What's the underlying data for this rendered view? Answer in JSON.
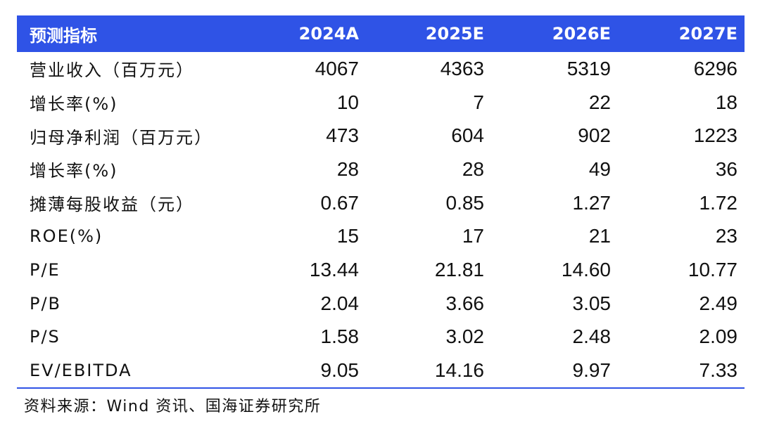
{
  "table": {
    "headers": [
      "预测指标",
      "2024A",
      "2025E",
      "2026E",
      "2027E"
    ],
    "rows": [
      {
        "label": "营业收入（百万元）",
        "values": [
          "4067",
          "4363",
          "5319",
          "6296"
        ]
      },
      {
        "label": "增长率(%)",
        "values": [
          "10",
          "7",
          "22",
          "18"
        ]
      },
      {
        "label": "归母净利润（百万元）",
        "values": [
          "473",
          "604",
          "902",
          "1223"
        ]
      },
      {
        "label": "增长率(%)",
        "values": [
          "28",
          "28",
          "49",
          "36"
        ]
      },
      {
        "label": "摊薄每股收益（元）",
        "values": [
          "0.67",
          "0.85",
          "1.27",
          "1.72"
        ]
      },
      {
        "label": "ROE(%)",
        "values": [
          "15",
          "17",
          "21",
          "23"
        ]
      },
      {
        "label": "P/E",
        "values": [
          "13.44",
          "21.81",
          "14.60",
          "10.77"
        ]
      },
      {
        "label": "P/B",
        "values": [
          "2.04",
          "3.66",
          "3.05",
          "2.49"
        ]
      },
      {
        "label": "P/S",
        "values": [
          "1.58",
          "3.02",
          "2.48",
          "2.09"
        ]
      },
      {
        "label": "EV/EBITDA",
        "values": [
          "9.05",
          "14.16",
          "9.97",
          "7.33"
        ]
      }
    ]
  },
  "source": "资料来源：Wind 资讯、国海证券研究所",
  "colors": {
    "header_bg": "#2f53e6",
    "header_text": "#ffffff",
    "rule": "#2f53e6"
  }
}
